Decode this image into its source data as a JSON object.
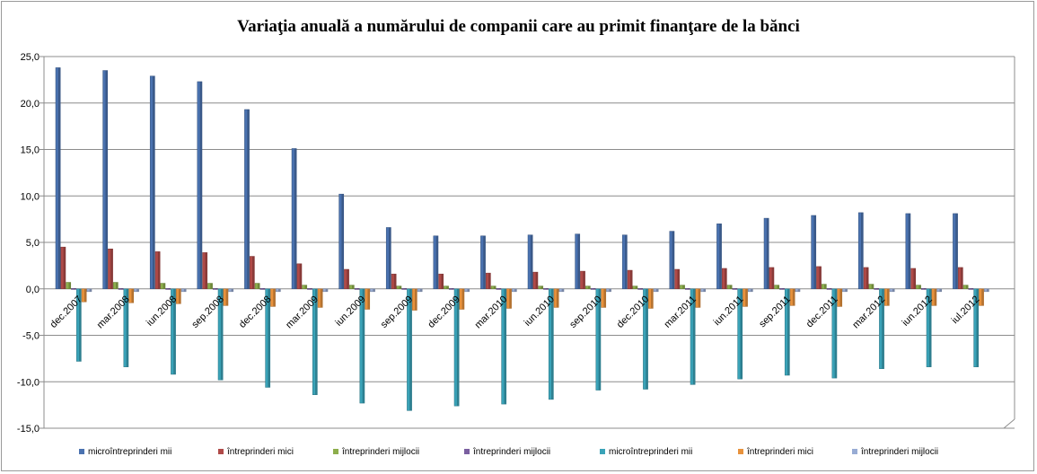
{
  "chart_data": {
    "type": "bar",
    "title": "Variaţia anuală a numărului de companii care au primit finanţare de la bănci",
    "xlabel": "",
    "ylabel": "",
    "ylim": [
      -15,
      25
    ],
    "yticks": [
      "25,0",
      "20,0",
      "15,0",
      "10,0",
      "5,0",
      "0,0",
      "-5,0",
      "-10,0",
      "-15,0"
    ],
    "ytick_values": [
      25,
      20,
      15,
      10,
      5,
      0,
      -5,
      -10,
      -15
    ],
    "grid": true,
    "legend_position": "bottom",
    "categories": [
      "dec.2007",
      "mar.2008",
      "iun.2008",
      "sep.2008",
      "dec.2008",
      "mar.2009",
      "iun.2009",
      "sep.2009",
      "dec.2009",
      "mar.2010",
      "iun.2010",
      "sep.2010",
      "dec.2010",
      "mar.2011",
      "iun.2011",
      "sep.2011",
      "dec.2011",
      "mar.2012",
      "iun.2012",
      "iul.2012"
    ],
    "series": [
      {
        "name": "microîntreprinderi mii",
        "color": "#4a72b0",
        "values": [
          23.8,
          23.5,
          22.9,
          22.3,
          19.3,
          15.1,
          10.2,
          6.6,
          5.7,
          5.7,
          5.8,
          5.9,
          5.8,
          6.2,
          7.0,
          7.6,
          7.9,
          8.2,
          8.1,
          8.1
        ]
      },
      {
        "name": "întreprinderi mici",
        "color": "#b04a48",
        "values": [
          4.5,
          4.3,
          4.0,
          3.9,
          3.5,
          2.7,
          2.1,
          1.6,
          1.6,
          1.7,
          1.8,
          1.9,
          2.0,
          2.1,
          2.2,
          2.3,
          2.4,
          2.3,
          2.2,
          2.3
        ]
      },
      {
        "name": "întreprinderi mijlocii",
        "color": "#8dae4c",
        "values": [
          0.7,
          0.7,
          0.6,
          0.6,
          0.6,
          0.4,
          0.4,
          0.3,
          0.3,
          0.3,
          0.3,
          0.3,
          0.3,
          0.4,
          0.4,
          0.4,
          0.5,
          0.5,
          0.4,
          0.4
        ]
      },
      {
        "name": "întreprinderi mijlocii",
        "color": "#7a5fa0",
        "values": [
          0.05,
          0.05,
          0.05,
          0.05,
          0.05,
          0.05,
          0.05,
          0.05,
          0.05,
          0.05,
          0.05,
          0.05,
          0.05,
          0.05,
          0.05,
          0.05,
          0.05,
          0.05,
          0.05,
          0.05
        ]
      },
      {
        "name": "microîntreprinderi mii",
        "color": "#3aa3b8",
        "values": [
          -7.8,
          -8.4,
          -9.2,
          -9.8,
          -10.6,
          -11.4,
          -12.3,
          -13.1,
          -12.6,
          -12.4,
          -11.9,
          -10.9,
          -10.8,
          -10.3,
          -9.7,
          -9.3,
          -9.6,
          -8.6,
          -8.4,
          -8.4
        ]
      },
      {
        "name": "întreprinderi mici",
        "color": "#e8923c",
        "values": [
          -1.4,
          -1.5,
          -1.6,
          -1.8,
          -1.9,
          -2.0,
          -2.2,
          -2.3,
          -2.2,
          -2.1,
          -2.0,
          -2.0,
          -2.1,
          -2.0,
          -1.9,
          -1.8,
          -1.9,
          -1.8,
          -1.8,
          -1.8
        ]
      },
      {
        "name": "întreprinderi mijlocii",
        "color": "#98acd4",
        "values": [
          -0.3,
          -0.3,
          -0.3,
          -0.3,
          -0.3,
          -0.3,
          -0.3,
          -0.3,
          -0.3,
          -0.3,
          -0.3,
          -0.3,
          -0.3,
          -0.3,
          -0.3,
          -0.3,
          -0.3,
          -0.3,
          -0.3,
          -0.3
        ]
      }
    ]
  }
}
